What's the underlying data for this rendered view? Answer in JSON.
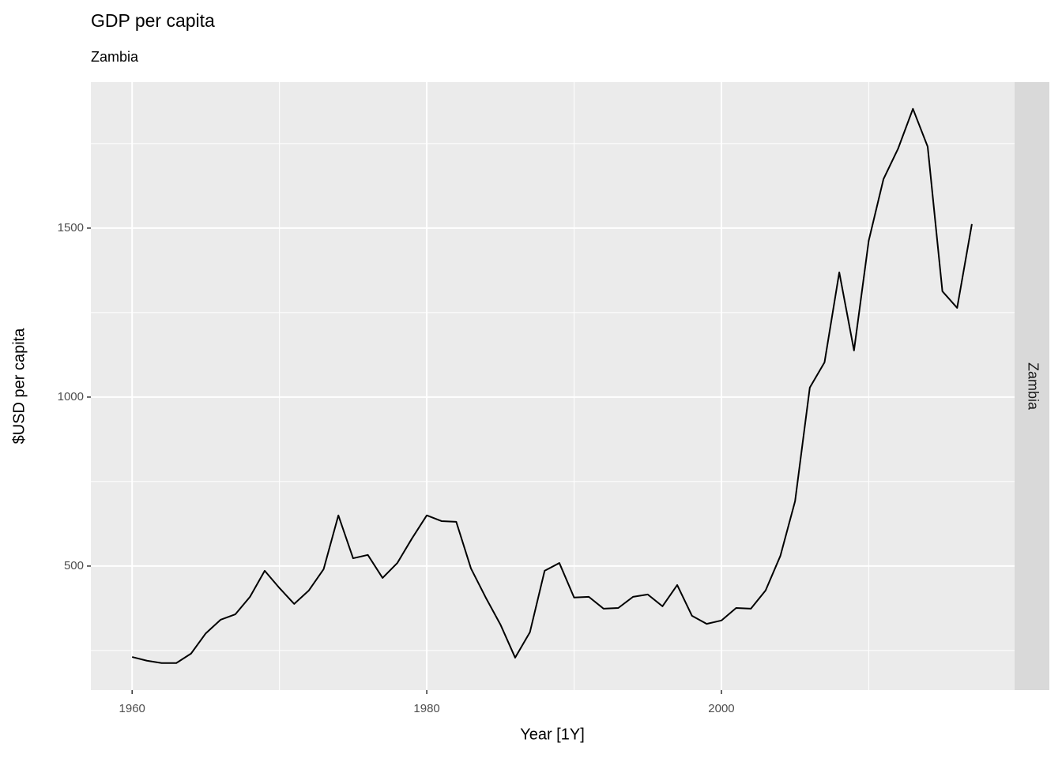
{
  "chart_data": {
    "type": "line",
    "title": "GDP per capita",
    "subtitle": "Zambia",
    "facet": "Zambia",
    "x_label": "Year [1Y]",
    "y_label": "$USD per capita",
    "color": "#000000",
    "grid": true,
    "x": [
      1960,
      1961,
      1962,
      1963,
      1964,
      1965,
      1966,
      1967,
      1968,
      1969,
      1970,
      1971,
      1972,
      1973,
      1974,
      1975,
      1976,
      1977,
      1978,
      1979,
      1980,
      1981,
      1982,
      1983,
      1984,
      1985,
      1986,
      1987,
      1988,
      1989,
      1990,
      1991,
      1992,
      1993,
      1994,
      1995,
      1996,
      1997,
      1998,
      1999,
      2000,
      2001,
      2002,
      2003,
      2004,
      2005,
      2006,
      2007,
      2008,
      2009,
      2010,
      2011,
      2012,
      2013,
      2014,
      2015,
      2016,
      2017
    ],
    "values": [
      231,
      220,
      213,
      213,
      241,
      301,
      341,
      357,
      409,
      486,
      435,
      388,
      428,
      491,
      650,
      523,
      533,
      465,
      509,
      582,
      650,
      633,
      631,
      493,
      407,
      327,
      229,
      304,
      486,
      509,
      407,
      409,
      374,
      376,
      409,
      416,
      381,
      444,
      353,
      329,
      339,
      376,
      374,
      428,
      530,
      692,
      1028,
      1103,
      1369,
      1138,
      1463,
      1645,
      1736,
      1853,
      1741,
      1313,
      1264,
      1512
    ],
    "xlim": [
      1957.2,
      2019.9
    ],
    "xticks": [
      1960,
      1980,
      2000
    ],
    "xminor": [
      1970,
      1990,
      2010
    ],
    "ylim": [
      133,
      1932
    ],
    "yticks": [
      500,
      1000,
      1500
    ],
    "yminor": [
      250,
      750,
      1250,
      1750
    ]
  }
}
